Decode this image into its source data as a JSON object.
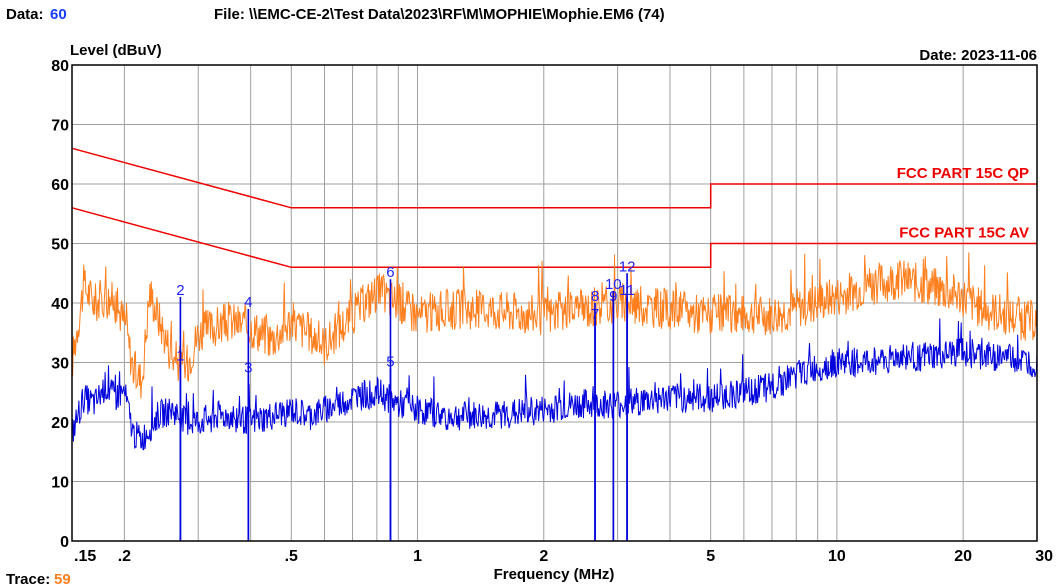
{
  "header": {
    "data_label": "Data:",
    "data_value": "60",
    "file_text": "File: \\\\EMC-CE-2\\Test Data\\2023\\RF\\M\\MOPHIE\\Mophie.EM6  (74)",
    "date_text": "Date: 2023-11-06"
  },
  "footer": {
    "trace_label": "Trace:",
    "trace_value": "59"
  },
  "colors": {
    "limit": "#ee0000",
    "quasi_peak_trace": "#ff7f1e",
    "average_trace": "#0000dd",
    "marker": "#2222ff",
    "grid": "#a0a0a0",
    "data_value": "#1a3cff",
    "trace_value": "#ff7f1e"
  },
  "chart_data": {
    "type": "line",
    "title": "",
    "xlabel": "Frequency (MHz)",
    "ylabel": "Level (dBuV)",
    "xscale": "log",
    "xlim": [
      0.15,
      30
    ],
    "ylim": [
      0,
      80
    ],
    "grid": true,
    "x_ticks": [
      {
        "value": 0.15,
        "label": ".15"
      },
      {
        "value": 0.2,
        "label": ".2"
      },
      {
        "value": 0.5,
        "label": ".5"
      },
      {
        "value": 1,
        "label": "1"
      },
      {
        "value": 2,
        "label": "2"
      },
      {
        "value": 5,
        "label": "5"
      },
      {
        "value": 10,
        "label": "10"
      },
      {
        "value": 20,
        "label": "20"
      },
      {
        "value": 30,
        "label": "30"
      }
    ],
    "y_ticks": [
      0,
      10,
      20,
      30,
      40,
      50,
      60,
      70,
      80
    ],
    "limits": [
      {
        "name": "FCC PART 15C QP",
        "x": [
          0.15,
          0.5,
          0.5,
          5,
          5,
          30
        ],
        "y": [
          66,
          56,
          56,
          56,
          60,
          60
        ]
      },
      {
        "name": "FCC PART 15C AV",
        "x": [
          0.15,
          0.5,
          0.5,
          5,
          5,
          30
        ],
        "y": [
          56,
          46,
          46,
          46,
          50,
          50
        ]
      }
    ],
    "series": [
      {
        "x": [
          0.15,
          0.16,
          0.17,
          0.18,
          0.19,
          0.2,
          0.21,
          0.22,
          0.23,
          0.24,
          0.26,
          0.28,
          0.3,
          0.33,
          0.36,
          0.4,
          0.45,
          0.5,
          0.55,
          0.6,
          0.7,
          0.8,
          0.9,
          1.0,
          1.2,
          1.5,
          2.0,
          2.5,
          3.0,
          4.0,
          5.0,
          6.0,
          7.0,
          8.0,
          10.0,
          12.0,
          14.0,
          16.0,
          18.0,
          20.0,
          22.0,
          25.0,
          28.0,
          30.0
        ],
        "values": [
          30,
          43,
          40,
          41,
          40,
          37,
          29,
          27,
          42,
          38,
          31,
          29,
          35,
          36,
          37,
          36,
          34,
          37,
          35,
          33,
          38,
          42,
          40,
          38,
          39,
          39,
          38,
          39,
          40,
          39,
          38,
          38,
          38,
          39,
          41,
          43,
          44,
          43,
          42,
          41,
          39,
          38,
          37,
          37
        ],
        "noise": 3.5
      },
      {
        "x": [
          0.15,
          0.16,
          0.17,
          0.18,
          0.19,
          0.2,
          0.21,
          0.22,
          0.23,
          0.24,
          0.26,
          0.28,
          0.3,
          0.33,
          0.36,
          0.4,
          0.45,
          0.5,
          0.55,
          0.6,
          0.7,
          0.8,
          0.9,
          1.0,
          1.2,
          1.5,
          2.0,
          2.5,
          3.0,
          4.0,
          5.0,
          6.0,
          7.0,
          8.0,
          10.0,
          12.0,
          14.0,
          16.0,
          18.0,
          20.0,
          22.0,
          25.0,
          28.0,
          30.0
        ],
        "values": [
          18,
          24,
          23,
          26,
          24,
          25,
          18,
          17,
          19,
          21,
          22,
          20,
          20,
          21,
          21,
          20,
          21,
          22,
          21,
          22,
          24,
          25,
          23,
          22,
          21,
          21,
          22,
          23,
          23,
          24,
          24,
          25,
          26,
          28,
          30,
          30,
          31,
          31,
          31,
          32,
          31,
          31,
          30,
          30
        ],
        "noise": 2.5
      }
    ],
    "markers": [
      {
        "id": "1",
        "x": 0.272,
        "y": 30
      },
      {
        "id": "2",
        "x": 0.272,
        "y": 41
      },
      {
        "id": "3",
        "x": 0.395,
        "y": 28
      },
      {
        "id": "4",
        "x": 0.395,
        "y": 39
      },
      {
        "id": "5",
        "x": 0.862,
        "y": 29
      },
      {
        "id": "6",
        "x": 0.862,
        "y": 44
      },
      {
        "id": "7",
        "x": 2.65,
        "y": 37
      },
      {
        "id": "8",
        "x": 2.65,
        "y": 40
      },
      {
        "id": "9",
        "x": 2.93,
        "y": 40
      },
      {
        "id": "10",
        "x": 2.93,
        "y": 42
      },
      {
        "id": "11",
        "x": 3.16,
        "y": 41
      },
      {
        "id": "12",
        "x": 3.16,
        "y": 45
      }
    ]
  }
}
